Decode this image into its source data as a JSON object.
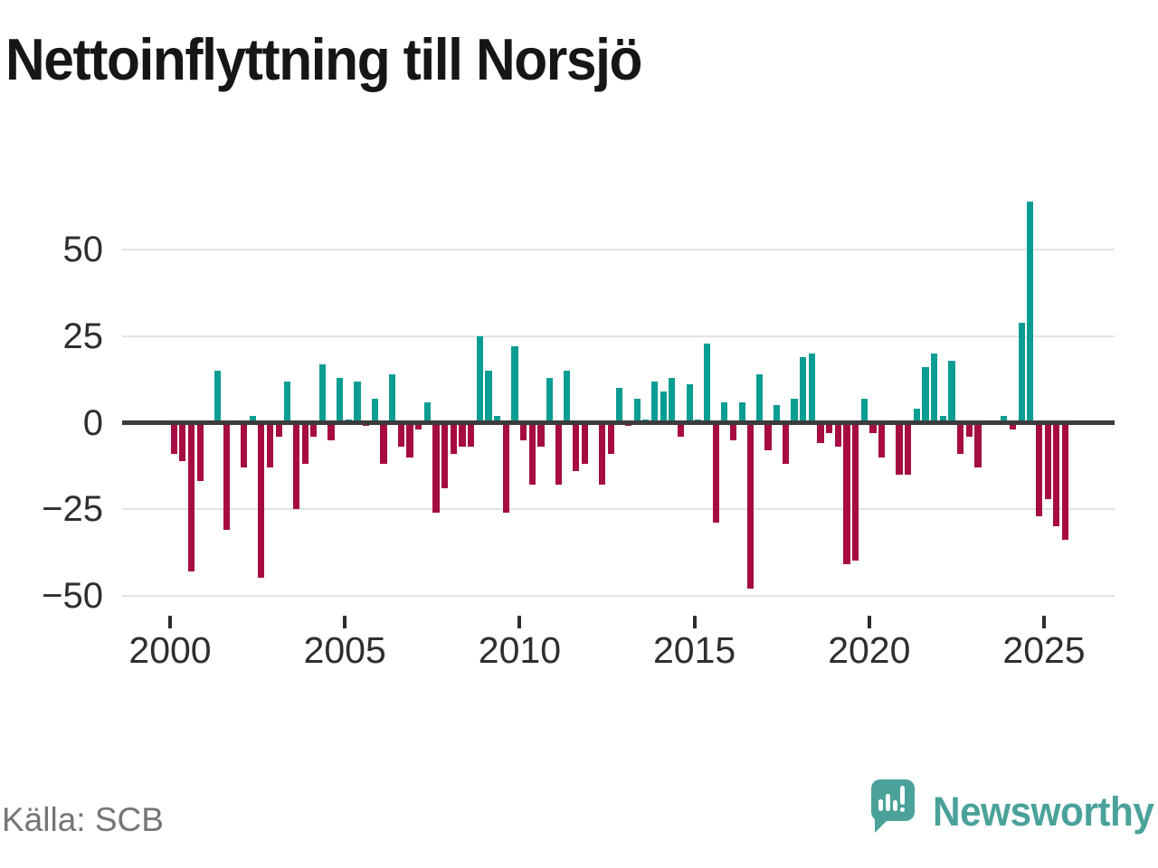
{
  "title": "Nettoinflyttning till Norsjö",
  "source": "Källa: SCB",
  "logo": {
    "text": "Newsworthy"
  },
  "colors": {
    "positive_bar": "#0a9d93",
    "negative_bar": "#a60c42",
    "gridline": "#e2e2e2",
    "zero_line": "#3b3b3b",
    "axis_text": "#2e2e2e",
    "source_text": "#757575",
    "logo_teal": "#4aa29a",
    "background": "#ffffff",
    "title_text": "#161616"
  },
  "chart_data": {
    "type": "bar",
    "title": "Nettoinflyttning till Norsjö",
    "frequency": "quarterly",
    "x_start": "2000-Q1",
    "x_end": "2025-Q3",
    "values": [
      -9,
      -11,
      -43,
      -17,
      0,
      15,
      -31,
      0,
      -13,
      2,
      -45,
      -13,
      -4,
      12,
      -25,
      -12,
      -4,
      17,
      -5,
      13,
      1,
      12,
      -1,
      7,
      -12,
      14,
      -7,
      -10,
      -2,
      6,
      -26,
      -19,
      -9,
      -7,
      -7,
      25,
      15,
      2,
      -26,
      22,
      -5,
      -18,
      -7,
      13,
      -18,
      15,
      -14,
      -12,
      0,
      -18,
      -9,
      10,
      -1,
      7,
      1,
      12,
      9,
      13,
      -4,
      11,
      1,
      23,
      -29,
      6,
      -5,
      6,
      -48,
      14,
      -8,
      5,
      -12,
      7,
      19,
      20,
      -6,
      -3,
      -7,
      -41,
      -40,
      7,
      -3,
      -10,
      0,
      -15,
      -15,
      4,
      16,
      20,
      2,
      18,
      -9,
      -4,
      -13,
      0,
      0,
      2,
      -2,
      29,
      64,
      -27,
      -22,
      -30,
      -34
    ],
    "y_ticks": [
      "50",
      "25",
      "0",
      "−25",
      "−50"
    ],
    "y_tick_values": [
      50,
      25,
      0,
      -25,
      -50
    ],
    "x_ticks": [
      "2000",
      "2005",
      "2010",
      "2015",
      "2020",
      "2025"
    ],
    "ylim": [
      -55,
      70
    ],
    "grid": "horizontal",
    "legend": "none"
  }
}
